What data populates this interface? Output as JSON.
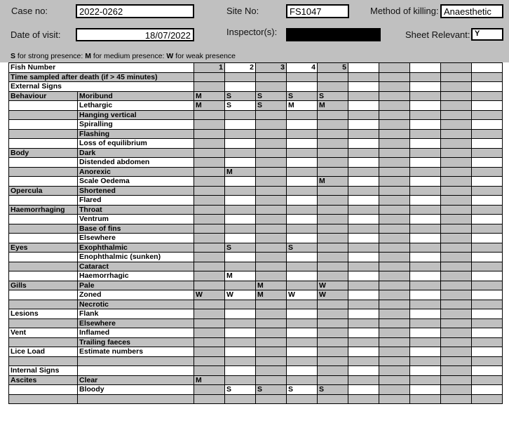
{
  "header": {
    "case_no_label": "Case no:",
    "case_no": "2022-0262",
    "site_no_label": "Site No:",
    "site_no": "FS1047",
    "method_label": "Method of killing:",
    "method": "Anaesthetic",
    "date_label": "Date of visit:",
    "date": "18/07/2022",
    "inspector_label": "Inspector(s):",
    "inspector": "",
    "sheet_relevant_label": "Sheet Relevant:",
    "sheet_relevant": "Y"
  },
  "legend": {
    "s": "S",
    "s_text": " for strong presence: ",
    "m": "M",
    "m_text": " for medium presence: ",
    "w": "W",
    "w_text": " for weak presence"
  },
  "grid": {
    "fish_number_label": "Fish Number",
    "fish_numbers": [
      "1",
      "2",
      "3",
      "4",
      "5",
      "",
      "",
      "",
      "",
      ""
    ],
    "rows": [
      {
        "c": "Time sampled after death (if > 45 minutes)",
        "s": "",
        "span": true,
        "v": []
      },
      {
        "c": "External Signs",
        "s": "",
        "span": true,
        "v": []
      },
      {
        "c": "Behaviour",
        "s": "Moribund",
        "v": [
          "M",
          "S",
          "S",
          "S",
          "S"
        ]
      },
      {
        "c": "",
        "s": "Lethargic",
        "v": [
          "M",
          "S",
          "S",
          "M",
          "M"
        ]
      },
      {
        "c": "",
        "s": "Hanging vertical",
        "v": []
      },
      {
        "c": "",
        "s": "Spiralling",
        "v": []
      },
      {
        "c": "",
        "s": "Flashing",
        "v": []
      },
      {
        "c": "",
        "s": "Loss of equilibrium",
        "v": []
      },
      {
        "c": "Body",
        "s": "Dark",
        "v": []
      },
      {
        "c": "",
        "s": "Distended abdomen",
        "v": []
      },
      {
        "c": "",
        "s": "Anorexic",
        "v": [
          "",
          "M"
        ]
      },
      {
        "c": "",
        "s": "Scale Oedema",
        "v": [
          "",
          "",
          "",
          "",
          "M"
        ]
      },
      {
        "c": "Opercula",
        "s": "Shortened",
        "v": []
      },
      {
        "c": "",
        "s": "Flared",
        "v": []
      },
      {
        "c": "Haemorrhaging",
        "s": "Throat",
        "v": []
      },
      {
        "c": "",
        "s": "Ventrum",
        "v": []
      },
      {
        "c": "",
        "s": "Base of fins",
        "v": []
      },
      {
        "c": "",
        "s": "Elsewhere",
        "v": []
      },
      {
        "c": "Eyes",
        "s": "Exophthalmic",
        "v": [
          "",
          "S",
          "",
          "S"
        ]
      },
      {
        "c": "",
        "s": "Enophthalmic (sunken)",
        "v": []
      },
      {
        "c": "",
        "s": "Cataract",
        "v": []
      },
      {
        "c": "",
        "s": "Haemorrhagic",
        "v": [
          "",
          "M"
        ]
      },
      {
        "c": "Gills",
        "s": "Pale",
        "v": [
          "",
          "",
          "M",
          "",
          "W"
        ]
      },
      {
        "c": "",
        "s": "Zoned",
        "v": [
          "W",
          "W",
          "M",
          "W",
          "W"
        ]
      },
      {
        "c": "",
        "s": "Necrotic",
        "v": []
      },
      {
        "c": "Lesions",
        "s": "Flank",
        "v": []
      },
      {
        "c": "",
        "s": "Elsewhere",
        "v": []
      },
      {
        "c": "Vent",
        "s": "Inflamed",
        "v": []
      },
      {
        "c": "",
        "s": "Trailing faeces",
        "v": []
      },
      {
        "c": "Lice Load",
        "s": "Estimate numbers",
        "v": []
      },
      {
        "c": "",
        "s": "",
        "v": []
      },
      {
        "c": "Internal Signs",
        "s": "",
        "v": []
      },
      {
        "c": "Ascites",
        "s": "Clear",
        "v": [
          "M"
        ]
      },
      {
        "c": "",
        "s": "Bloody",
        "v": [
          "",
          "S",
          "S",
          "S",
          "S"
        ]
      },
      {
        "c": "",
        "s": "",
        "v": []
      }
    ]
  }
}
